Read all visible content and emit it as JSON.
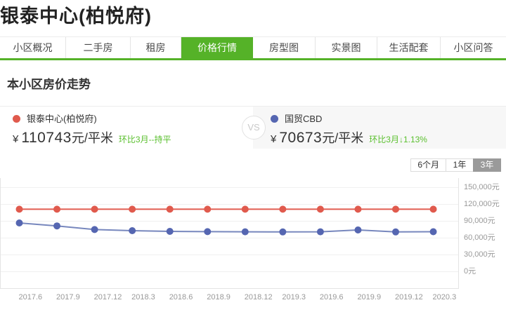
{
  "page": {
    "title": "银泰中心(柏悦府)"
  },
  "tabs": [
    {
      "id": "overview",
      "label": "小区概况",
      "active": false
    },
    {
      "id": "resale",
      "label": "二手房",
      "active": false
    },
    {
      "id": "rent",
      "label": "租房",
      "active": false
    },
    {
      "id": "price-trend",
      "label": "价格行情",
      "active": true
    },
    {
      "id": "floor-plan",
      "label": "房型图",
      "active": false
    },
    {
      "id": "photos",
      "label": "实景图",
      "active": false
    },
    {
      "id": "amenities",
      "label": "生活配套",
      "active": false
    },
    {
      "id": "qa",
      "label": "小区问答",
      "active": false
    }
  ],
  "section": {
    "title": "本小区房价走势"
  },
  "comparison": {
    "vs_label": "VS",
    "left": {
      "name": "银泰中心(柏悦府)",
      "currency": "¥",
      "price": "110743",
      "unit": "元/平米",
      "change": "环比3月--持平",
      "dot_color": "#e05a4d"
    },
    "right": {
      "name": "国贸CBD",
      "currency": "¥",
      "price": "70673",
      "unit": "元/平米",
      "change": "环比3月↓1.13%",
      "dot_color": "#5566b1"
    }
  },
  "period_buttons": [
    {
      "id": "6m",
      "label": "6个月",
      "active": false
    },
    {
      "id": "1y",
      "label": "1年",
      "active": false
    },
    {
      "id": "3y",
      "label": "3年",
      "active": true
    }
  ],
  "chart_data": {
    "type": "line",
    "title": "本小区房价走势",
    "categories": [
      "2017.6",
      "2017.9",
      "2017.12",
      "2018.3",
      "2018.6",
      "2018.9",
      "2018.12",
      "2019.3",
      "2019.6",
      "2019.9",
      "2019.12",
      "2020.3"
    ],
    "series": [
      {
        "id": "yintai",
        "name": "银泰中心(柏悦府)",
        "color": "#e05a4d",
        "line_color": "#e25c50",
        "values": [
          110743,
          110743,
          110743,
          110743,
          110743,
          110743,
          110743,
          110743,
          110743,
          110743,
          110743,
          110743
        ]
      },
      {
        "id": "guomao-cbd",
        "name": "国贸CBD",
        "color": "#5566b1",
        "line_color": "#7787bd",
        "values": [
          86250,
          81000,
          74500,
          72500,
          71250,
          70800,
          70500,
          70300,
          70500,
          73700,
          70200,
          70673
        ]
      }
    ],
    "xlabel": "",
    "ylabel": "",
    "ylim": [
      0,
      150000
    ],
    "y_ticks": [
      150000,
      120000,
      90000,
      60000,
      30000,
      0
    ],
    "y_tick_labels": [
      "150,000元",
      "120,000元",
      "90,000元",
      "60,000元",
      "30,000元",
      "0元"
    ],
    "grid": true,
    "legend_position": "none",
    "y_axis_position": "right"
  },
  "colors": {
    "accent_green": "#55b228",
    "change_text_green": "#5bc02f",
    "active_period_bg": "#9a9a9a",
    "panel_gray": "#f7f7f7"
  }
}
